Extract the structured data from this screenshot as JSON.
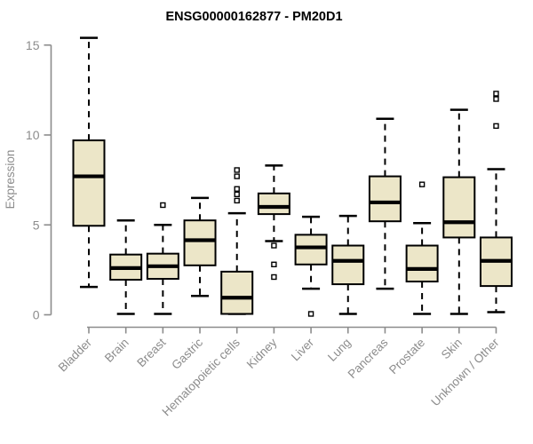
{
  "chart_data": {
    "type": "boxplot",
    "title": "ENSG00000162877 - PM20D1",
    "xlabel": "",
    "ylabel": "Expression",
    "ylim": [
      0,
      15
    ],
    "yticks": [
      0,
      5,
      10,
      15
    ],
    "grid": false,
    "legend": false,
    "categories": [
      "Bladder",
      "Brain",
      "Breast",
      "Gastric",
      "Hematopoietic cells",
      "Kidney",
      "Liver",
      "Lung",
      "Pancreas",
      "Prostate",
      "Skin",
      "Unknown / Other"
    ],
    "series": [
      {
        "label": "Bladder",
        "low": 1.55,
        "q1": 4.95,
        "median": 7.7,
        "q3": 9.7,
        "high": 15.4,
        "outliers": []
      },
      {
        "label": "Brain",
        "low": 0.05,
        "q1": 1.95,
        "median": 2.6,
        "q3": 3.35,
        "high": 5.25,
        "outliers": []
      },
      {
        "label": "Breast",
        "low": 0.05,
        "q1": 2.0,
        "median": 2.7,
        "q3": 3.4,
        "high": 5.0,
        "outliers": [
          6.1
        ]
      },
      {
        "label": "Gastric",
        "low": 1.05,
        "q1": 2.75,
        "median": 4.15,
        "q3": 5.25,
        "high": 6.5,
        "outliers": []
      },
      {
        "label": "Hematopoietic cells",
        "low": 0.05,
        "q1": 0.05,
        "median": 0.95,
        "q3": 2.4,
        "high": 5.65,
        "outliers": [
          8.05,
          7.7,
          7.0,
          6.7,
          6.35
        ]
      },
      {
        "label": "Kidney",
        "low": 4.1,
        "q1": 5.6,
        "median": 6.0,
        "q3": 6.75,
        "high": 8.3,
        "outliers": [
          3.85,
          2.8,
          2.1
        ]
      },
      {
        "label": "Liver",
        "low": 1.45,
        "q1": 2.8,
        "median": 3.75,
        "q3": 4.45,
        "high": 5.45,
        "outliers": [
          0.05
        ]
      },
      {
        "label": "Lung",
        "low": 0.05,
        "q1": 1.7,
        "median": 3.0,
        "q3": 3.85,
        "high": 5.5,
        "outliers": []
      },
      {
        "label": "Pancreas",
        "low": 1.45,
        "q1": 5.2,
        "median": 6.25,
        "q3": 7.7,
        "high": 10.9,
        "outliers": []
      },
      {
        "label": "Prostate",
        "low": 0.05,
        "q1": 1.85,
        "median": 2.55,
        "q3": 3.85,
        "high": 5.1,
        "outliers": [
          7.25
        ]
      },
      {
        "label": "Skin",
        "low": 0.05,
        "q1": 4.3,
        "median": 5.15,
        "q3": 7.65,
        "high": 11.4,
        "outliers": []
      },
      {
        "label": "Unknown / Other",
        "low": 0.15,
        "q1": 1.6,
        "median": 3.0,
        "q3": 4.3,
        "high": 8.1,
        "outliers": [
          12.3,
          12.0,
          10.5
        ]
      }
    ],
    "colors": {
      "box_fill": "#ece6c8",
      "box_stroke": "#000000",
      "median": "#000000",
      "whisker": "#000000",
      "outlier_stroke": "#000000",
      "outlier_fill": "#ffffff",
      "axis": "#8c8c8c",
      "tick_text": "#8c8c8c",
      "title_text": "#000000",
      "background": "#ffffff"
    }
  }
}
